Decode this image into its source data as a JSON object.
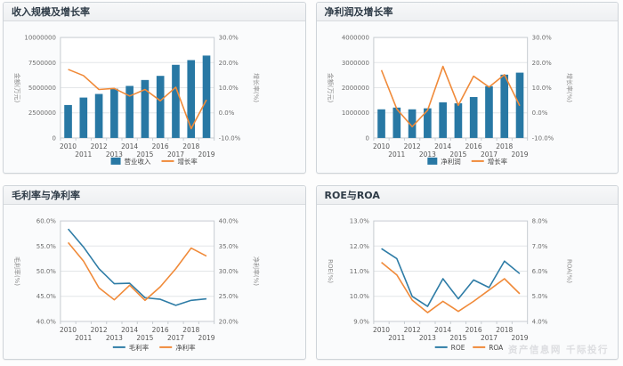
{
  "page": {
    "watermark": "资产信息网 千际投行"
  },
  "colors": {
    "bar_blue": "#2878a4",
    "line_blue": "#2e7ca6",
    "line_orange": "#f08a39",
    "grid_line": "#e3e6e8",
    "plot_border": "#c7ccd1",
    "tick_text": "#6e6e6e",
    "axis_name_text": "#8c8c8c",
    "x_label_text": "#555555",
    "legend_text": "#444444",
    "plot_background": "#ffffff"
  },
  "chart_data": [
    {
      "type": "bar+line",
      "title": "收入规模及增长率",
      "categories": [
        "2010",
        "2011",
        "2012",
        "2013",
        "2014",
        "2015",
        "2016",
        "2017",
        "2018",
        "2019"
      ],
      "left_axis": {
        "name": "金额(万元)",
        "min": 0,
        "max": 10000000,
        "ticks": [
          "0",
          "2500000",
          "5000000",
          "7500000",
          "10000000"
        ]
      },
      "right_axis": {
        "name": "增长率(%)",
        "min": -10,
        "max": 30,
        "ticks": [
          "-10.0%",
          "0.0%",
          "10.0%",
          "20.0%",
          "30.0%"
        ]
      },
      "series": [
        {
          "name": "营业收入",
          "kind": "bar",
          "axis": "left",
          "color": "#2878a4",
          "values": [
            3280000,
            4020000,
            4380000,
            4900000,
            5180000,
            5770000,
            6180000,
            7280000,
            7750000,
            8200000
          ]
        },
        {
          "name": "增长率",
          "kind": "line",
          "axis": "right",
          "color": "#f08a39",
          "values": [
            17.3,
            14.8,
            9.3,
            9.7,
            6.7,
            9.3,
            4.8,
            10.2,
            -6.3,
            5.2
          ]
        }
      ]
    },
    {
      "type": "bar+line",
      "title": "净利润及增长率",
      "categories": [
        "2010",
        "2011",
        "2012",
        "2013",
        "2014",
        "2015",
        "2016",
        "2017",
        "2018",
        "2019"
      ],
      "left_axis": {
        "name": "金额(万元)",
        "min": 0,
        "max": 4000000,
        "ticks": [
          "0",
          "1000000",
          "2000000",
          "3000000",
          "4000000"
        ]
      },
      "right_axis": {
        "name": "增长率(%)",
        "min": -10,
        "max": 30,
        "ticks": [
          "-10.0%",
          "0.0%",
          "10.0%",
          "20.0%",
          "30.0%"
        ]
      },
      "series": [
        {
          "name": "净利润",
          "kind": "bar",
          "axis": "left",
          "color": "#2878a4",
          "values": [
            1140000,
            1210000,
            1140000,
            1180000,
            1420000,
            1380000,
            1630000,
            2060000,
            2520000,
            2600000
          ]
        },
        {
          "name": "增长率",
          "kind": "line",
          "axis": "right",
          "color": "#f08a39",
          "values": [
            17.0,
            1.5,
            -5.5,
            1.0,
            18.5,
            3.0,
            14.6,
            10.3,
            15.2,
            2.8
          ]
        }
      ]
    },
    {
      "type": "line",
      "title": "毛利率与净利率",
      "categories": [
        "2010",
        "2011",
        "2012",
        "2013",
        "2014",
        "2015",
        "2016",
        "2017",
        "2018",
        "2019"
      ],
      "left_axis": {
        "name": "毛利率(%)",
        "min": 40,
        "max": 60,
        "ticks": [
          "40.0%",
          "45.0%",
          "50.0%",
          "55.0%",
          "60.0%"
        ]
      },
      "right_axis": {
        "name": "净利率(%)",
        "min": 20,
        "max": 40,
        "ticks": [
          "20.0%",
          "25.0%",
          "30.0%",
          "35.0%",
          "40.0%"
        ]
      },
      "series": [
        {
          "name": "毛利率",
          "kind": "line",
          "axis": "left",
          "color": "#2e7ca6",
          "values": [
            58.4,
            54.8,
            50.5,
            47.5,
            47.6,
            44.7,
            44.4,
            43.2,
            44.2,
            44.5
          ]
        },
        {
          "name": "净利率",
          "kind": "line",
          "axis": "right",
          "color": "#f08a39",
          "values": [
            35.7,
            32.0,
            26.7,
            24.3,
            27.2,
            24.2,
            26.9,
            30.5,
            34.6,
            33.0
          ]
        }
      ]
    },
    {
      "type": "line",
      "title": "ROE与ROA",
      "categories": [
        "2010",
        "2011",
        "2012",
        "2013",
        "2014",
        "2015",
        "2016",
        "2017",
        "2018",
        "2019"
      ],
      "left_axis": {
        "name": "ROE(%)",
        "min": 9,
        "max": 13,
        "ticks": [
          "9.0%",
          "10.0%",
          "11.0%",
          "12.0%",
          "13.0%"
        ]
      },
      "right_axis": {
        "name": "ROA(%)",
        "min": 4,
        "max": 8,
        "ticks": [
          "4.0%",
          "5.0%",
          "6.0%",
          "7.0%",
          "8.0%"
        ]
      },
      "series": [
        {
          "name": "ROE",
          "kind": "line",
          "axis": "left",
          "color": "#2e7ca6",
          "values": [
            11.9,
            11.5,
            10.0,
            9.6,
            10.7,
            9.9,
            10.65,
            10.35,
            11.4,
            10.9
          ]
        },
        {
          "name": "ROA",
          "kind": "line",
          "axis": "right",
          "color": "#f08a39",
          "values": [
            6.35,
            5.85,
            4.85,
            4.35,
            4.8,
            4.4,
            4.8,
            5.25,
            5.7,
            5.1
          ]
        }
      ]
    }
  ]
}
